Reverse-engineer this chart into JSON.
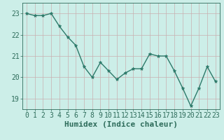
{
  "x": [
    0,
    1,
    2,
    3,
    4,
    5,
    6,
    7,
    8,
    9,
    10,
    11,
    12,
    13,
    14,
    15,
    16,
    17,
    18,
    19,
    20,
    21,
    22,
    23
  ],
  "y": [
    23.0,
    22.9,
    22.9,
    23.0,
    22.4,
    21.9,
    21.5,
    20.5,
    20.0,
    20.7,
    20.3,
    19.9,
    20.2,
    20.4,
    20.4,
    21.1,
    21.0,
    21.0,
    20.3,
    19.5,
    18.65,
    19.5,
    20.5,
    19.8
  ],
  "xlabel": "Humidex (Indice chaleur)",
  "xlim": [
    -0.5,
    23.5
  ],
  "ylim": [
    18.5,
    23.5
  ],
  "yticks": [
    19,
    20,
    21,
    22,
    23
  ],
  "xticks": [
    0,
    1,
    2,
    3,
    4,
    5,
    6,
    7,
    8,
    9,
    10,
    11,
    12,
    13,
    14,
    15,
    16,
    17,
    18,
    19,
    20,
    21,
    22,
    23
  ],
  "line_color": "#2d7a6a",
  "marker": "*",
  "bg_color": "#cceee8",
  "grid_color_v": "#c9b0b0",
  "grid_color_h": "#c9b0b0",
  "font_color": "#2d6b5a",
  "tick_fontsize": 7,
  "xlabel_fontsize": 8
}
